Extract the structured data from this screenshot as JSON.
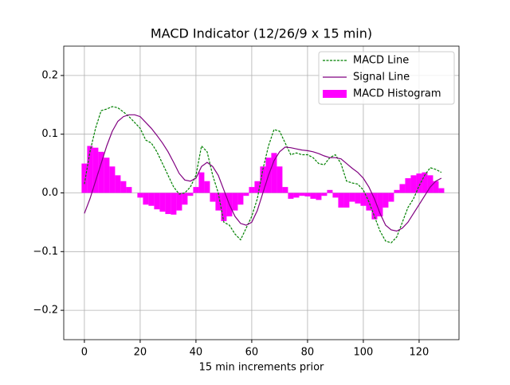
{
  "chart_data": {
    "type": "line",
    "title": "MACD Indicator (12/26/9 x 15 min)",
    "xlabel": "15 min increments prior",
    "x": [
      0,
      2,
      4,
      6,
      8,
      10,
      12,
      14,
      16,
      18,
      20,
      22,
      24,
      26,
      28,
      30,
      32,
      34,
      36,
      38,
      40,
      42,
      44,
      46,
      48,
      50,
      52,
      54,
      56,
      58,
      60,
      62,
      64,
      66,
      68,
      70,
      72,
      74,
      76,
      78,
      80,
      82,
      84,
      86,
      88,
      90,
      92,
      94,
      96,
      98,
      100,
      102,
      104,
      106,
      108,
      110,
      112,
      114,
      116,
      118,
      120,
      122,
      124,
      126,
      128
    ],
    "series": [
      {
        "name": "MACD Line",
        "color": "#008000",
        "style": "dashed",
        "values": [
          0.015,
          0.07,
          0.11,
          0.14,
          0.143,
          0.147,
          0.145,
          0.138,
          0.13,
          0.12,
          0.11,
          0.09,
          0.085,
          0.07,
          0.05,
          0.03,
          0.01,
          -0.002,
          0.0,
          0.01,
          0.03,
          0.08,
          0.07,
          0.03,
          0.0,
          -0.05,
          -0.055,
          -0.07,
          -0.08,
          -0.06,
          -0.04,
          -0.01,
          0.04,
          0.08,
          0.108,
          0.105,
          0.085,
          0.065,
          0.068,
          0.065,
          0.065,
          0.06,
          0.05,
          0.048,
          0.06,
          0.065,
          0.05,
          0.02,
          0.017,
          0.015,
          0.005,
          -0.015,
          -0.04,
          -0.065,
          -0.082,
          -0.085,
          -0.075,
          -0.05,
          -0.025,
          -0.01,
          0.012,
          0.03,
          0.043,
          0.04,
          0.035
        ]
      },
      {
        "name": "Signal Line",
        "color": "#800080",
        "style": "solid",
        "values": [
          -0.035,
          -0.01,
          0.02,
          0.05,
          0.08,
          0.105,
          0.122,
          0.13,
          0.133,
          0.133,
          0.13,
          0.12,
          0.11,
          0.098,
          0.085,
          0.07,
          0.052,
          0.033,
          0.022,
          0.02,
          0.025,
          0.045,
          0.052,
          0.045,
          0.03,
          0.005,
          -0.02,
          -0.04,
          -0.052,
          -0.055,
          -0.05,
          -0.03,
          0.0,
          0.03,
          0.055,
          0.07,
          0.078,
          0.077,
          0.075,
          0.073,
          0.072,
          0.07,
          0.067,
          0.063,
          0.06,
          0.06,
          0.058,
          0.05,
          0.042,
          0.035,
          0.025,
          0.01,
          -0.01,
          -0.035,
          -0.055,
          -0.063,
          -0.065,
          -0.06,
          -0.05,
          -0.035,
          -0.02,
          -0.005,
          0.01,
          0.02,
          0.025
        ]
      },
      {
        "name": "MACD Histogram",
        "color": "#ff00ff",
        "type": "bar",
        "values": [
          0.05,
          0.08,
          0.077,
          0.07,
          0.06,
          0.045,
          0.03,
          0.02,
          0.01,
          0.0,
          -0.008,
          -0.02,
          -0.022,
          -0.028,
          -0.032,
          -0.036,
          -0.037,
          -0.03,
          -0.02,
          -0.005,
          0.01,
          0.035,
          0.02,
          -0.015,
          -0.03,
          -0.048,
          -0.04,
          -0.03,
          -0.02,
          -0.005,
          0.01,
          0.02,
          0.045,
          0.06,
          0.068,
          0.045,
          0.01,
          -0.01,
          -0.008,
          -0.005,
          -0.006,
          -0.01,
          -0.012,
          -0.005,
          0.005,
          -0.008,
          -0.025,
          -0.025,
          -0.015,
          -0.018,
          -0.022,
          -0.03,
          -0.045,
          -0.04,
          -0.025,
          -0.015,
          0.005,
          0.015,
          0.025,
          0.03,
          0.033,
          0.035,
          0.03,
          0.02,
          0.008
        ]
      }
    ],
    "xlim": [
      -7.4,
      134.3
    ],
    "ylim": [
      -0.25,
      0.25
    ],
    "xticks": [
      0,
      20,
      40,
      60,
      80,
      100,
      120
    ],
    "yticks": [
      {
        "value": -0.2,
        "label": "−0.2"
      },
      {
        "value": -0.1,
        "label": "−0.1"
      },
      {
        "value": 0,
        "label": "0.0"
      },
      0.1,
      0.2
    ],
    "grid": true,
    "legend": "upper right"
  }
}
